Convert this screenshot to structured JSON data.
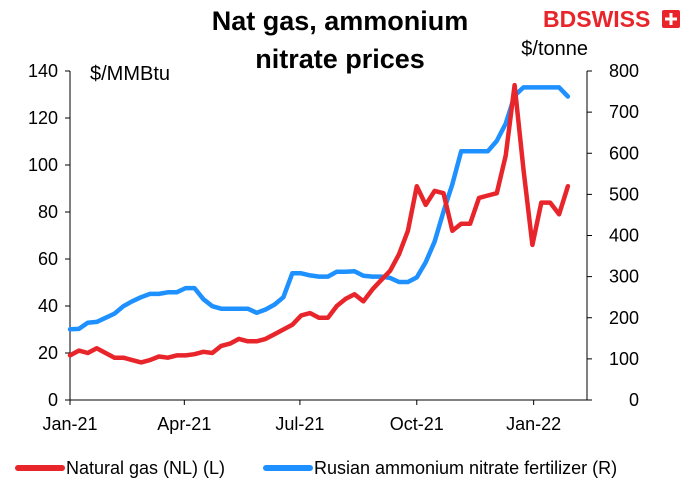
{
  "logo": {
    "text_bd": "BD",
    "text_swiss": "SWISS",
    "color": "#e8252b"
  },
  "chart_data": {
    "type": "line",
    "title_lines": [
      "Nat gas, ammonium",
      "nitrate prices"
    ],
    "left_unit": "$/MMBtu",
    "right_unit": "$/tonne",
    "x_ticks": [
      {
        "date": "2021-01-01",
        "label": "Jan-21"
      },
      {
        "date": "2021-04-01",
        "label": "Apr-21"
      },
      {
        "date": "2021-07-01",
        "label": "Jul-21"
      },
      {
        "date": "2021-10-01",
        "label": "Oct-21"
      },
      {
        "date": "2022-01-01",
        "label": "Jan-22"
      }
    ],
    "xlim": [
      "2021-01-01",
      "2022-02-12"
    ],
    "y_left": {
      "lim": [
        0,
        140
      ],
      "ticks": [
        0,
        20,
        40,
        60,
        80,
        100,
        120,
        140
      ]
    },
    "y_right": {
      "lim": [
        0,
        800
      ],
      "ticks": [
        0,
        100,
        200,
        300,
        400,
        500,
        600,
        700,
        800
      ]
    },
    "grid": false,
    "legend_position": "bottom",
    "series": [
      {
        "name": "Natural gas (NL) (L)",
        "axis": "left",
        "color": "#e8252b",
        "points": [
          [
            "2021-01-01",
            19
          ],
          [
            "2021-01-08",
            21
          ],
          [
            "2021-01-15",
            20
          ],
          [
            "2021-01-22",
            22
          ],
          [
            "2021-01-29",
            20
          ],
          [
            "2021-02-05",
            18
          ],
          [
            "2021-02-12",
            18
          ],
          [
            "2021-02-19",
            17
          ],
          [
            "2021-02-26",
            16
          ],
          [
            "2021-03-05",
            17
          ],
          [
            "2021-03-12",
            18.5
          ],
          [
            "2021-03-19",
            18
          ],
          [
            "2021-03-26",
            19
          ],
          [
            "2021-04-02",
            19
          ],
          [
            "2021-04-09",
            19.5
          ],
          [
            "2021-04-16",
            20.5
          ],
          [
            "2021-04-23",
            20
          ],
          [
            "2021-04-30",
            23
          ],
          [
            "2021-05-07",
            24
          ],
          [
            "2021-05-14",
            26
          ],
          [
            "2021-05-21",
            25
          ],
          [
            "2021-05-28",
            25
          ],
          [
            "2021-06-04",
            26
          ],
          [
            "2021-06-11",
            28
          ],
          [
            "2021-06-18",
            30
          ],
          [
            "2021-06-25",
            32
          ],
          [
            "2021-07-02",
            36
          ],
          [
            "2021-07-09",
            37
          ],
          [
            "2021-07-16",
            35
          ],
          [
            "2021-07-23",
            35
          ],
          [
            "2021-07-30",
            40
          ],
          [
            "2021-08-06",
            43
          ],
          [
            "2021-08-13",
            45
          ],
          [
            "2021-08-20",
            42
          ],
          [
            "2021-08-27",
            47
          ],
          [
            "2021-09-03",
            51
          ],
          [
            "2021-09-10",
            55
          ],
          [
            "2021-09-17",
            62
          ],
          [
            "2021-09-24",
            72
          ],
          [
            "2021-10-01",
            91
          ],
          [
            "2021-10-08",
            83
          ],
          [
            "2021-10-15",
            89
          ],
          [
            "2021-10-22",
            88
          ],
          [
            "2021-10-29",
            72
          ],
          [
            "2021-11-05",
            75
          ],
          [
            "2021-11-12",
            75
          ],
          [
            "2021-11-19",
            86
          ],
          [
            "2021-11-26",
            87
          ],
          [
            "2021-12-03",
            88
          ],
          [
            "2021-12-10",
            104
          ],
          [
            "2021-12-17",
            134
          ],
          [
            "2021-12-24",
            98
          ],
          [
            "2021-12-31",
            66
          ],
          [
            "2022-01-07",
            84
          ],
          [
            "2022-01-14",
            84
          ],
          [
            "2022-01-21",
            79
          ],
          [
            "2022-01-28",
            91
          ]
        ]
      },
      {
        "name": "Rusian ammonium nitrate fertilizer (R)",
        "axis": "right",
        "color": "#1e90ff",
        "points": [
          [
            "2021-01-01",
            172
          ],
          [
            "2021-01-08",
            173
          ],
          [
            "2021-01-15",
            188
          ],
          [
            "2021-01-22",
            190
          ],
          [
            "2021-01-29",
            200
          ],
          [
            "2021-02-05",
            210
          ],
          [
            "2021-02-12",
            228
          ],
          [
            "2021-02-19",
            240
          ],
          [
            "2021-02-26",
            250
          ],
          [
            "2021-03-05",
            258
          ],
          [
            "2021-03-12",
            258
          ],
          [
            "2021-03-19",
            262
          ],
          [
            "2021-03-26",
            262
          ],
          [
            "2021-04-02",
            272
          ],
          [
            "2021-04-09",
            272
          ],
          [
            "2021-04-16",
            245
          ],
          [
            "2021-04-23",
            228
          ],
          [
            "2021-04-30",
            222
          ],
          [
            "2021-05-07",
            222
          ],
          [
            "2021-05-14",
            222
          ],
          [
            "2021-05-21",
            222
          ],
          [
            "2021-05-28",
            212
          ],
          [
            "2021-06-04",
            220
          ],
          [
            "2021-06-11",
            232
          ],
          [
            "2021-06-18",
            250
          ],
          [
            "2021-06-25",
            308
          ],
          [
            "2021-07-02",
            308
          ],
          [
            "2021-07-09",
            303
          ],
          [
            "2021-07-16",
            300
          ],
          [
            "2021-07-23",
            300
          ],
          [
            "2021-07-30",
            312
          ],
          [
            "2021-08-06",
            312
          ],
          [
            "2021-08-13",
            313
          ],
          [
            "2021-08-20",
            302
          ],
          [
            "2021-08-27",
            300
          ],
          [
            "2021-09-03",
            300
          ],
          [
            "2021-09-10",
            297
          ],
          [
            "2021-09-17",
            287
          ],
          [
            "2021-09-24",
            287
          ],
          [
            "2021-10-01",
            298
          ],
          [
            "2021-10-08",
            335
          ],
          [
            "2021-10-15",
            385
          ],
          [
            "2021-10-22",
            458
          ],
          [
            "2021-10-29",
            525
          ],
          [
            "2021-11-05",
            605
          ],
          [
            "2021-11-12",
            605
          ],
          [
            "2021-11-19",
            605
          ],
          [
            "2021-11-26",
            605
          ],
          [
            "2021-12-03",
            630
          ],
          [
            "2021-12-10",
            672
          ],
          [
            "2021-12-17",
            740
          ],
          [
            "2021-12-24",
            760
          ],
          [
            "2021-12-31",
            760
          ],
          [
            "2022-01-07",
            760
          ],
          [
            "2022-01-14",
            760
          ],
          [
            "2022-01-21",
            760
          ],
          [
            "2022-01-28",
            738
          ]
        ]
      }
    ]
  }
}
